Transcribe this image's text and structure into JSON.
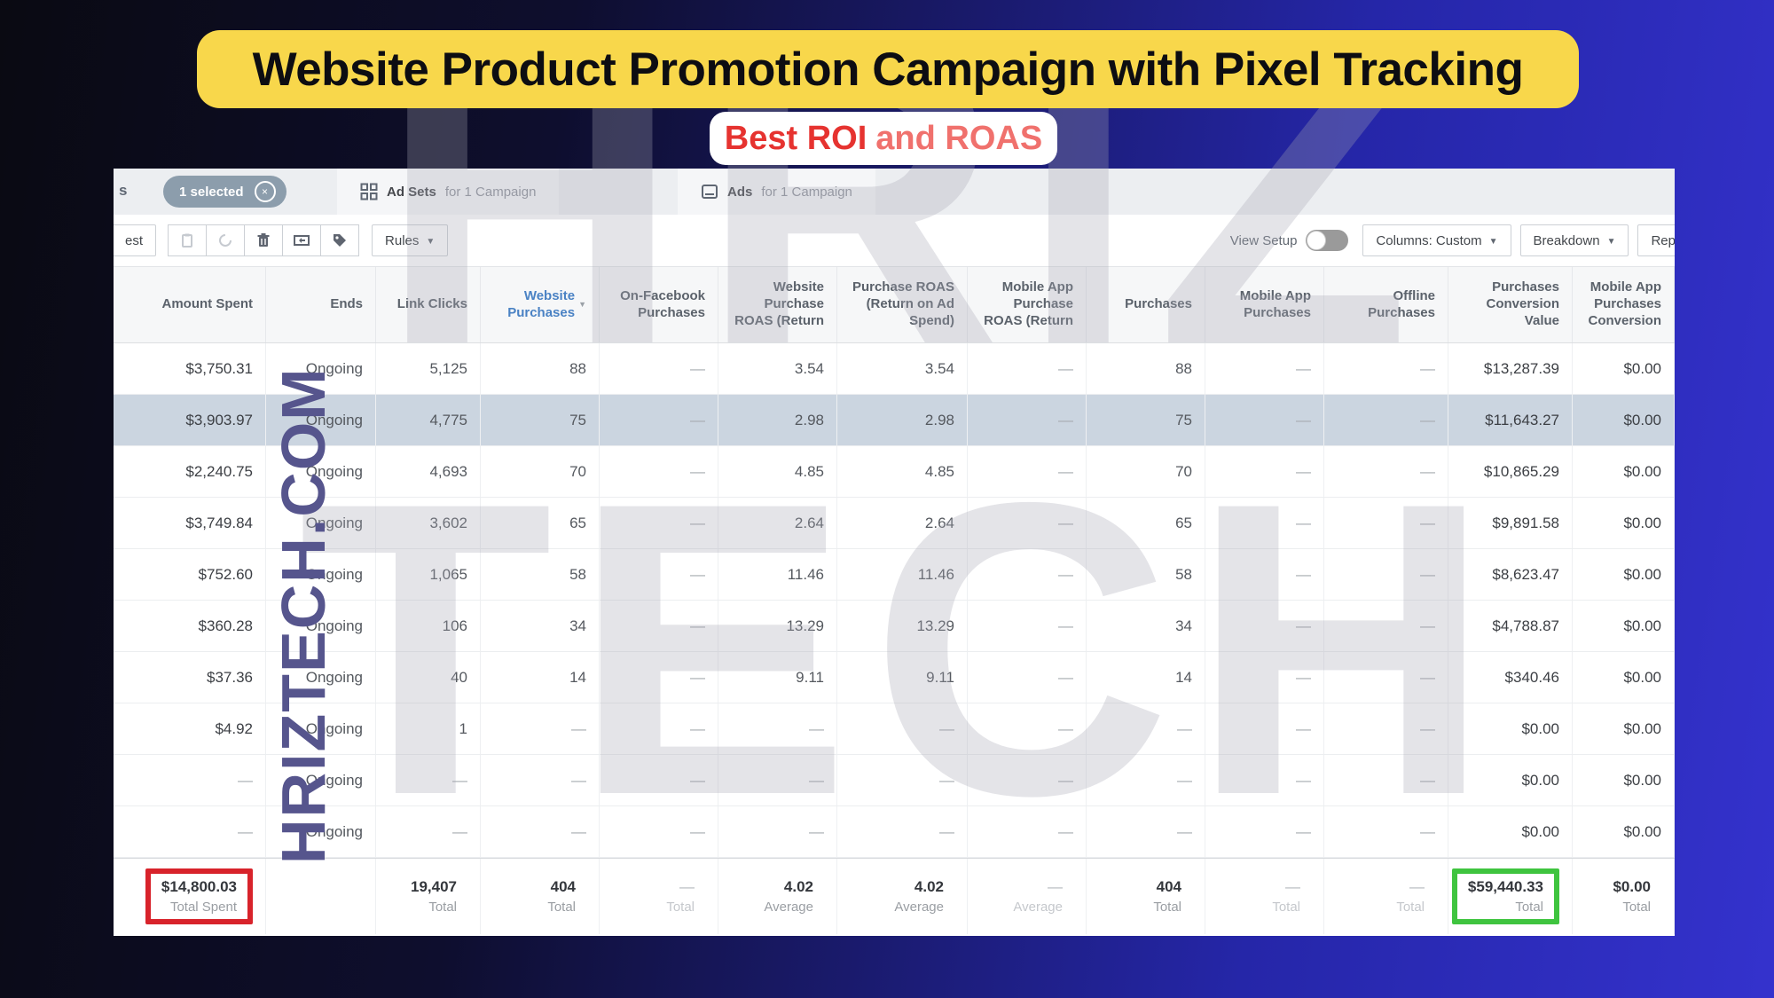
{
  "banner": {
    "title": "Website Product Promotion Campaign with Pixel Tracking",
    "subtitle_strong": "Best ROI",
    "subtitle_rest": "and ROAS"
  },
  "watermark": {
    "vertical": "HRIZTECH.COM",
    "big_line1": "HRIZ",
    "big_line2": "TECH"
  },
  "tabbar": {
    "campaigns_fragment": "s",
    "selected_pill": "1 selected",
    "adsets_bold": "Ad Sets",
    "adsets_rest": "for 1 Campaign",
    "ads_bold": "Ads",
    "ads_rest": "for 1 Campaign"
  },
  "toolbar": {
    "test_fragment": "est",
    "rules_label": "Rules",
    "view_setup_label": "View Setup",
    "columns_label": "Columns: Custom",
    "breakdown_label": "Breakdown",
    "report_fragment": "Rep"
  },
  "icons": {
    "close": "×",
    "caret_down": "▼"
  },
  "table": {
    "columns": [
      {
        "id": "amount-spent",
        "label": "Amount Spent"
      },
      {
        "id": "ends",
        "label": "Ends"
      },
      {
        "id": "link-clicks",
        "label": "Link Clicks"
      },
      {
        "id": "website-purchases",
        "label": "Website Purchases",
        "accent": true,
        "sort": true
      },
      {
        "id": "on-facebook-purchases",
        "label": "On-Facebook Purchases"
      },
      {
        "id": "website-purchase-roas",
        "label": "Website Purchase ROAS (Return"
      },
      {
        "id": "purchase-roas",
        "label": "Purchase ROAS (Return on Ad Spend)"
      },
      {
        "id": "mobile-app-purchase-roas",
        "label": "Mobile App Purchase ROAS (Return"
      },
      {
        "id": "purchases",
        "label": "Purchases"
      },
      {
        "id": "mobile-app-purchases",
        "label": "Mobile App Purchases"
      },
      {
        "id": "offline-purchases",
        "label": "Offline Purchases"
      },
      {
        "id": "purchases-conversion-value",
        "label": "Purchases Conversion Value"
      },
      {
        "id": "mobile-app-purchases-conversion",
        "label": "Mobile App Purchases Conversion"
      }
    ],
    "selected_row_index": 1,
    "rows": [
      [
        "$3,750.31",
        "Ongoing",
        "5,125",
        "88",
        "—",
        "3.54",
        "3.54",
        "—",
        "88",
        "—",
        "—",
        "$13,287.39",
        "$0.00"
      ],
      [
        "$3,903.97",
        "Ongoing",
        "4,775",
        "75",
        "—",
        "2.98",
        "2.98",
        "—",
        "75",
        "—",
        "—",
        "$11,643.27",
        "$0.00"
      ],
      [
        "$2,240.75",
        "Ongoing",
        "4,693",
        "70",
        "—",
        "4.85",
        "4.85",
        "—",
        "70",
        "—",
        "—",
        "$10,865.29",
        "$0.00"
      ],
      [
        "$3,749.84",
        "Ongoing",
        "3,602",
        "65",
        "—",
        "2.64",
        "2.64",
        "—",
        "65",
        "—",
        "—",
        "$9,891.58",
        "$0.00"
      ],
      [
        "$752.60",
        "Ongoing",
        "1,065",
        "58",
        "—",
        "11.46",
        "11.46",
        "—",
        "58",
        "—",
        "—",
        "$8,623.47",
        "$0.00"
      ],
      [
        "$360.28",
        "Ongoing",
        "106",
        "34",
        "—",
        "13.29",
        "13.29",
        "—",
        "34",
        "—",
        "—",
        "$4,788.87",
        "$0.00"
      ],
      [
        "$37.36",
        "Ongoing",
        "40",
        "14",
        "—",
        "9.11",
        "9.11",
        "—",
        "14",
        "—",
        "—",
        "$340.46",
        "$0.00"
      ],
      [
        "$4.92",
        "Ongoing",
        "1",
        "—",
        "—",
        "—",
        "—",
        "—",
        "—",
        "—",
        "—",
        "$0.00",
        "$0.00"
      ],
      [
        "—",
        "Ongoing",
        "—",
        "—",
        "—",
        "—",
        "—",
        "—",
        "—",
        "—",
        "—",
        "$0.00",
        "$0.00"
      ],
      [
        "—",
        "Ongoing",
        "—",
        "—",
        "—",
        "—",
        "—",
        "—",
        "—",
        "—",
        "—",
        "$0.00",
        "$0.00"
      ]
    ],
    "totals": [
      {
        "value": "$14,800.03",
        "label": "Total Spent",
        "box": "red"
      },
      {
        "value": "",
        "label": ""
      },
      {
        "value": "19,407",
        "label": "Total"
      },
      {
        "value": "404",
        "label": "Total"
      },
      {
        "value": "—",
        "label": "Total"
      },
      {
        "value": "4.02",
        "label": "Average"
      },
      {
        "value": "4.02",
        "label": "Average"
      },
      {
        "value": "—",
        "label": "Average"
      },
      {
        "value": "404",
        "label": "Total"
      },
      {
        "value": "—",
        "label": "Total"
      },
      {
        "value": "—",
        "label": "Total"
      },
      {
        "value": "$59,440.33",
        "label": "Total",
        "box": "green"
      },
      {
        "value": "$0.00",
        "label": "Total"
      }
    ]
  },
  "colors": {
    "banner_bg": "#f8d74b",
    "subtitle_red": "#e63330",
    "highlight_row": "#cbd5e0",
    "box_red": "#d8232b",
    "box_green": "#3fc43f",
    "watermark_purple": "#56558d",
    "link_blue": "#4a82c4"
  }
}
